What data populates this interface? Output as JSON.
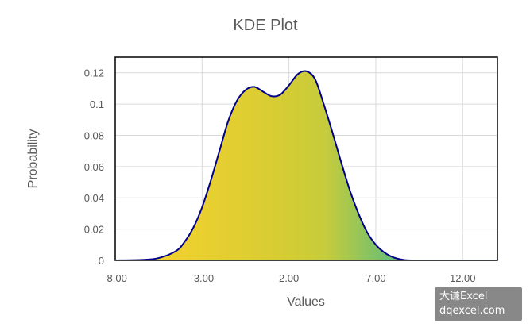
{
  "chart_data": {
    "type": "area",
    "title": "KDE Plot",
    "xlabel": "Values",
    "ylabel": "Probability",
    "xlim": [
      -8,
      14
    ],
    "ylim": [
      0,
      0.13
    ],
    "x_ticks": [
      "-8.00",
      "-3.00",
      "2.00",
      "7.00",
      "12.00"
    ],
    "x_tick_values": [
      -8,
      -3,
      2,
      7,
      12
    ],
    "y_ticks": [
      "0",
      "0.02",
      "0.04",
      "0.06",
      "0.08",
      "0.1",
      "0.12"
    ],
    "y_tick_values": [
      0,
      0.02,
      0.04,
      0.06,
      0.08,
      0.1,
      0.12
    ],
    "grid": true,
    "series": [
      {
        "x": [
          -8.0,
          -6.5,
          -5.5,
          -4.5,
          -4.0,
          -3.5,
          -3.0,
          -2.5,
          -2.0,
          -1.5,
          -1.0,
          -0.5,
          0.0,
          0.5,
          1.0,
          1.5,
          2.0,
          2.5,
          3.0,
          3.5,
          4.0,
          4.5,
          5.0,
          5.5,
          6.0,
          6.5,
          7.0,
          7.5,
          8.0,
          8.5,
          9.0,
          9.5,
          10.0,
          11.0,
          12.0,
          13.0,
          14.0
        ],
        "y": [
          0.0,
          0.0003,
          0.0015,
          0.006,
          0.012,
          0.021,
          0.034,
          0.051,
          0.07,
          0.089,
          0.102,
          0.109,
          0.111,
          0.108,
          0.105,
          0.106,
          0.112,
          0.119,
          0.121,
          0.116,
          0.1,
          0.082,
          0.063,
          0.045,
          0.03,
          0.018,
          0.01,
          0.005,
          0.002,
          0.0005,
          0.0,
          0.0,
          0.0,
          0.0,
          0.0,
          0.0,
          0.0
        ],
        "line_color": "#00008B",
        "fill_gradient": [
          "#FFD32B",
          "#D4CC34",
          "#C6CC3C",
          "#1BB2A3",
          "#16A0C8"
        ]
      }
    ]
  },
  "watermark": {
    "line1": "大谦Excel",
    "line2": "dqexcel.com"
  }
}
